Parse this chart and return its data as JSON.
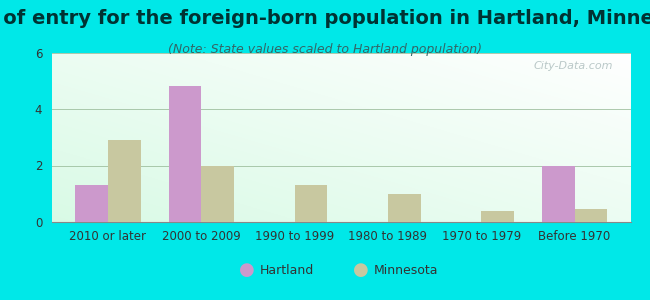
{
  "title": "Year of entry for the foreign-born population in Hartland, Minnesota",
  "subtitle": "(Note: State values scaled to Hartland population)",
  "categories": [
    "2010 or later",
    "2000 to 2009",
    "1990 to 1999",
    "1980 to 1989",
    "1970 to 1979",
    "Before 1970"
  ],
  "hartland_values": [
    1.3,
    4.8,
    0,
    0,
    0,
    2.0
  ],
  "minnesota_values": [
    2.9,
    2.0,
    1.3,
    1.0,
    0.4,
    0.45
  ],
  "hartland_color": "#cc99cc",
  "minnesota_color": "#c8c8a0",
  "background_outer": "#00e8e8",
  "ylim": [
    0,
    6
  ],
  "yticks": [
    0,
    2,
    4,
    6
  ],
  "bar_width": 0.35,
  "title_fontsize": 14,
  "subtitle_fontsize": 9,
  "tick_fontsize": 8.5,
  "legend_fontsize": 9,
  "watermark": "City-Data.com"
}
